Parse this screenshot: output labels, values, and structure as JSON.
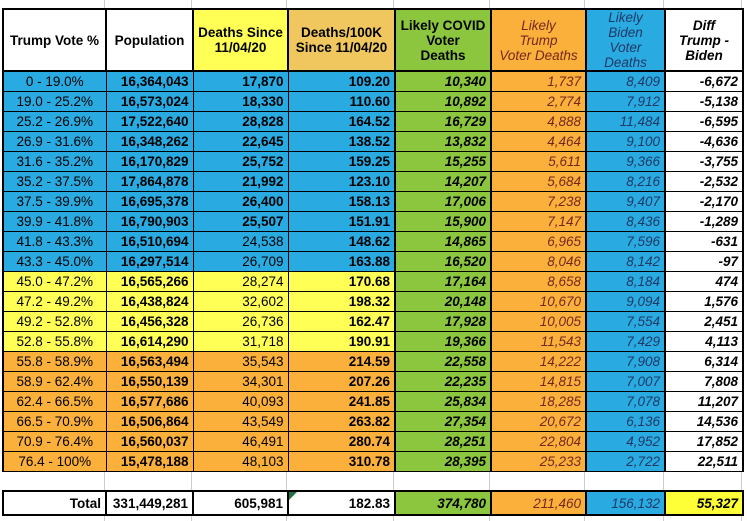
{
  "palette": {
    "blue": "#29ABE2",
    "yellow": "#FFFF55",
    "orange": "#FBB03B",
    "green": "#8CC63F",
    "tan": "#EFC75E",
    "total_diff_yellow": "#FFFF38",
    "trump_text": "#73281D",
    "biden_text": "#203864",
    "grid": "#CCCCCC",
    "triangle_green": "#1E7145"
  },
  "table": {
    "headers": {
      "vote": "Trump Vote %",
      "population": "Population",
      "deaths": "Deaths Since\n11/04/20",
      "per100k": "Deaths/100K\nSince 11/04/20",
      "covid": "Likely COVID\nVoter\nDeaths",
      "trump": "Likely\nTrump\nVoter Deaths",
      "biden": "Likely\nBiden\nVoter Deaths",
      "diff": "Diff\nTrump -\nBiden"
    },
    "rows": [
      {
        "vote": "0 - 19.0%",
        "population": "16,364,043",
        "deaths": "17,870",
        "per100k": "109.20",
        "covid": "10,340",
        "trump": "1,737",
        "biden": "8,409",
        "diff": "-6,672",
        "band": "blue",
        "deaths_bold": true
      },
      {
        "vote": "19.0 - 25.2%",
        "population": "16,573,024",
        "deaths": "18,330",
        "per100k": "110.60",
        "covid": "10,892",
        "trump": "2,774",
        "biden": "7,912",
        "diff": "-5,138",
        "band": "blue",
        "deaths_bold": true
      },
      {
        "vote": "25.2 - 26.9%",
        "population": "17,522,640",
        "deaths": "28,828",
        "per100k": "164.52",
        "covid": "16,729",
        "trump": "4,888",
        "biden": "11,484",
        "diff": "-6,595",
        "band": "blue",
        "deaths_bold": true
      },
      {
        "vote": "26.9 - 31.6%",
        "population": "16,348,262",
        "deaths": "22,645",
        "per100k": "138.52",
        "covid": "13,832",
        "trump": "4,464",
        "biden": "9,100",
        "diff": "-4,636",
        "band": "blue",
        "deaths_bold": true
      },
      {
        "vote": "31.6 - 35.2%",
        "population": "16,170,829",
        "deaths": "25,752",
        "per100k": "159.25",
        "covid": "15,255",
        "trump": "5,611",
        "biden": "9,366",
        "diff": "-3,755",
        "band": "blue",
        "deaths_bold": true
      },
      {
        "vote": "35.2 - 37.5%",
        "population": "17,864,878",
        "deaths": "21,992",
        "per100k": "123.10",
        "covid": "14,207",
        "trump": "5,684",
        "biden": "8,216",
        "diff": "-2,532",
        "band": "blue",
        "deaths_bold": true
      },
      {
        "vote": "37.5 - 39.9%",
        "population": "16,695,378",
        "deaths": "26,400",
        "per100k": "158.13",
        "covid": "17,006",
        "trump": "7,238",
        "biden": "9,407",
        "diff": "-2,170",
        "band": "blue",
        "deaths_bold": true
      },
      {
        "vote": "39.9 - 41.8%",
        "population": "16,790,903",
        "deaths": "25,507",
        "per100k": "151.91",
        "covid": "15,900",
        "trump": "7,147",
        "biden": "8,436",
        "diff": "-1,289",
        "band": "blue",
        "deaths_bold": true
      },
      {
        "vote": "41.8 - 43.3%",
        "population": "16,510,694",
        "deaths": "24,538",
        "per100k": "148.62",
        "covid": "14,865",
        "trump": "6,965",
        "biden": "7,596",
        "diff": "-631",
        "band": "blue",
        "deaths_bold": false
      },
      {
        "vote": "43.3 - 45.0%",
        "population": "16,297,514",
        "deaths": "26,709",
        "per100k": "163.88",
        "covid": "16,520",
        "trump": "8,046",
        "biden": "8,142",
        "diff": "-97",
        "band": "blue",
        "deaths_bold": false
      },
      {
        "vote": "45.0 - 47.2%",
        "population": "16,565,266",
        "deaths": "28,274",
        "per100k": "170.68",
        "covid": "17,164",
        "trump": "8,658",
        "biden": "8,184",
        "diff": "474",
        "band": "yellow",
        "deaths_bold": false
      },
      {
        "vote": "47.2 - 49.2%",
        "population": "16,438,824",
        "deaths": "32,602",
        "per100k": "198.32",
        "covid": "20,148",
        "trump": "10,670",
        "biden": "9,094",
        "diff": "1,576",
        "band": "yellow",
        "deaths_bold": false
      },
      {
        "vote": "49.2 - 52.8%",
        "population": "16,456,328",
        "deaths": "26,736",
        "per100k": "162.47",
        "covid": "17,928",
        "trump": "10,005",
        "biden": "7,554",
        "diff": "2,451",
        "band": "yellow",
        "deaths_bold": false
      },
      {
        "vote": "52.8 - 55.8%",
        "population": "16,614,290",
        "deaths": "31,718",
        "per100k": "190.91",
        "covid": "19,366",
        "trump": "11,543",
        "biden": "7,429",
        "diff": "4,113",
        "band": "yellow",
        "deaths_bold": false
      },
      {
        "vote": "55.8 - 58.9%",
        "population": "16,563,494",
        "deaths": "35,543",
        "per100k": "214.59",
        "covid": "22,558",
        "trump": "14,222",
        "biden": "7,908",
        "diff": "6,314",
        "band": "orange",
        "deaths_bold": false
      },
      {
        "vote": "58.9 - 62.4%",
        "population": "16,550,139",
        "deaths": "34,301",
        "per100k": "207.26",
        "covid": "22,235",
        "trump": "14,815",
        "biden": "7,007",
        "diff": "7,808",
        "band": "orange",
        "deaths_bold": false
      },
      {
        "vote": "62.4 - 66.5%",
        "population": "16,577,686",
        "deaths": "40,093",
        "per100k": "241.85",
        "covid": "25,834",
        "trump": "18,285",
        "biden": "7,078",
        "diff": "11,207",
        "band": "orange",
        "deaths_bold": false
      },
      {
        "vote": "66.5 - 70.9%",
        "population": "16,506,864",
        "deaths": "43,549",
        "per100k": "263.82",
        "covid": "27,354",
        "trump": "20,672",
        "biden": "6,136",
        "diff": "14,536",
        "band": "orange",
        "deaths_bold": false
      },
      {
        "vote": "70.9 - 76.4%",
        "population": "16,560,037",
        "deaths": "46,491",
        "per100k": "280.74",
        "covid": "28,251",
        "trump": "22,804",
        "biden": "4,952",
        "diff": "17,852",
        "band": "orange",
        "deaths_bold": false
      },
      {
        "vote": "76.4 - 100%",
        "population": "15,478,188",
        "deaths": "48,103",
        "per100k": "310.78",
        "covid": "28,395",
        "trump": "25,233",
        "biden": "2,722",
        "diff": "22,511",
        "band": "orange",
        "deaths_bold": false
      }
    ],
    "total": {
      "label": "Total",
      "population": "331,449,281",
      "deaths": "605,981",
      "per100k": "182.83",
      "covid": "374,780",
      "trump": "211,460",
      "biden": "156,132",
      "diff": "55,327"
    }
  }
}
